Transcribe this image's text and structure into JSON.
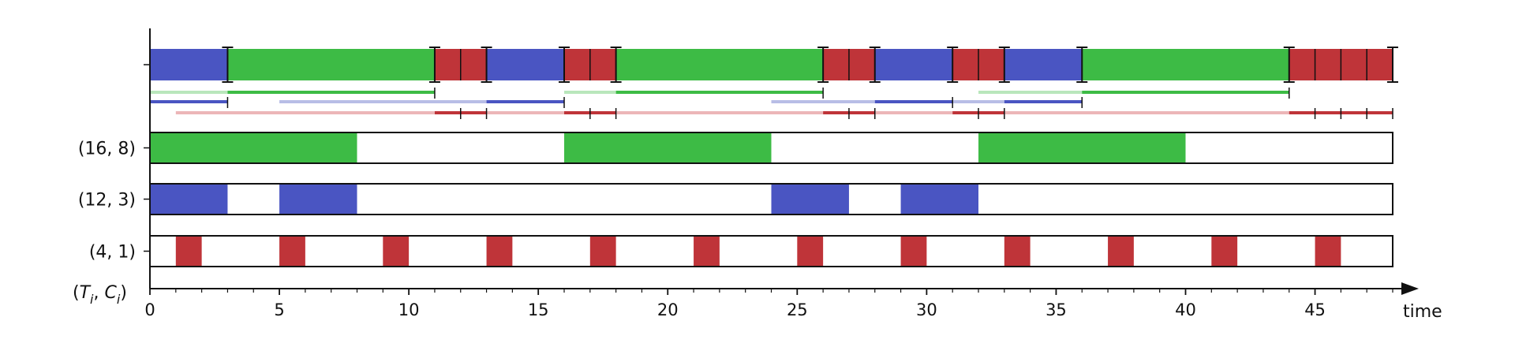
{
  "chart_data": {
    "type": "gantt",
    "title": "",
    "xlabel": "time",
    "ylabel_parts": {
      "open": "(",
      "T": "T",
      "sub_i": "i",
      "comma": ", ",
      "C": "C",
      "close": ")"
    },
    "xlim": [
      0,
      48
    ],
    "xticks": [
      0,
      5,
      10,
      15,
      20,
      25,
      30,
      35,
      40,
      45
    ],
    "colors": {
      "green": "#3dbb45",
      "blue": "#4a55c2",
      "red": "#bf3439"
    },
    "tasks": [
      {
        "label": "(16, 8)",
        "period": 16,
        "wcet": 8,
        "color": "green",
        "busy": [
          [
            0,
            8
          ],
          [
            16,
            24
          ],
          [
            32,
            40
          ]
        ]
      },
      {
        "label": "(12, 3)",
        "period": 12,
        "wcet": 3,
        "color": "blue",
        "busy": [
          [
            0,
            3
          ],
          [
            5,
            8
          ],
          [
            24,
            27
          ],
          [
            29,
            32
          ]
        ]
      },
      {
        "label": "(4, 1)",
        "period": 4,
        "wcet": 1,
        "color": "red",
        "busy": [
          [
            1,
            2
          ],
          [
            5,
            6
          ],
          [
            9,
            10
          ],
          [
            13,
            14
          ],
          [
            17,
            18
          ],
          [
            21,
            22
          ],
          [
            25,
            26
          ],
          [
            29,
            30
          ],
          [
            33,
            34
          ],
          [
            37,
            38
          ],
          [
            41,
            42
          ],
          [
            45,
            46
          ]
        ]
      }
    ],
    "schedule": [
      {
        "start": 0,
        "end": 3,
        "color": "blue"
      },
      {
        "start": 3,
        "end": 11,
        "color": "green"
      },
      {
        "start": 11,
        "end": 12,
        "color": "red"
      },
      {
        "start": 12,
        "end": 13,
        "color": "red"
      },
      {
        "start": 13,
        "end": 16,
        "color": "blue"
      },
      {
        "start": 16,
        "end": 17,
        "color": "red"
      },
      {
        "start": 17,
        "end": 18,
        "color": "red"
      },
      {
        "start": 18,
        "end": 26,
        "color": "green"
      },
      {
        "start": 26,
        "end": 27,
        "color": "red"
      },
      {
        "start": 27,
        "end": 28,
        "color": "red"
      },
      {
        "start": 28,
        "end": 31,
        "color": "blue"
      },
      {
        "start": 31,
        "end": 32,
        "color": "red"
      },
      {
        "start": 32,
        "end": 33,
        "color": "red"
      },
      {
        "start": 33,
        "end": 36,
        "color": "blue"
      },
      {
        "start": 36,
        "end": 44,
        "color": "green"
      },
      {
        "start": 44,
        "end": 45,
        "color": "red"
      },
      {
        "start": 45,
        "end": 46,
        "color": "red"
      },
      {
        "start": 46,
        "end": 47,
        "color": "red"
      },
      {
        "start": 47,
        "end": 48,
        "color": "red"
      }
    ],
    "schedule_markers": [
      3,
      11,
      13,
      16,
      18,
      26,
      28,
      31,
      33,
      36,
      44,
      48
    ],
    "schedule_minor_markers": [
      12,
      17,
      27,
      32,
      45,
      46,
      47
    ],
    "track_lines": [
      {
        "color": "green",
        "level": 0,
        "light": [
          [
            0,
            3
          ],
          [
            16,
            18
          ],
          [
            32,
            36
          ]
        ],
        "dark": [
          [
            3,
            11
          ],
          [
            18,
            26
          ],
          [
            36,
            44
          ]
        ],
        "ends": [
          11,
          26,
          44
        ]
      },
      {
        "color": "blue",
        "level": 1,
        "light": [
          [
            5,
            13
          ],
          [
            24,
            28
          ],
          [
            29,
            33
          ]
        ],
        "dark": [
          [
            0,
            3
          ],
          [
            13,
            16
          ],
          [
            28,
            31
          ],
          [
            33,
            36
          ]
        ],
        "ends": [
          3,
          16,
          31,
          36
        ]
      },
      {
        "color": "red",
        "level": 2,
        "light": [
          [
            1,
            11
          ],
          [
            13,
            16
          ],
          [
            18,
            26
          ],
          [
            28,
            31
          ],
          [
            33,
            44
          ]
        ],
        "dark": [
          [
            11,
            13
          ],
          [
            16,
            18
          ],
          [
            26,
            28
          ],
          [
            31,
            33
          ],
          [
            44,
            48
          ]
        ],
        "ends": [
          12,
          13,
          17,
          18,
          27,
          28,
          32,
          33,
          45,
          46,
          47,
          48
        ]
      }
    ]
  }
}
